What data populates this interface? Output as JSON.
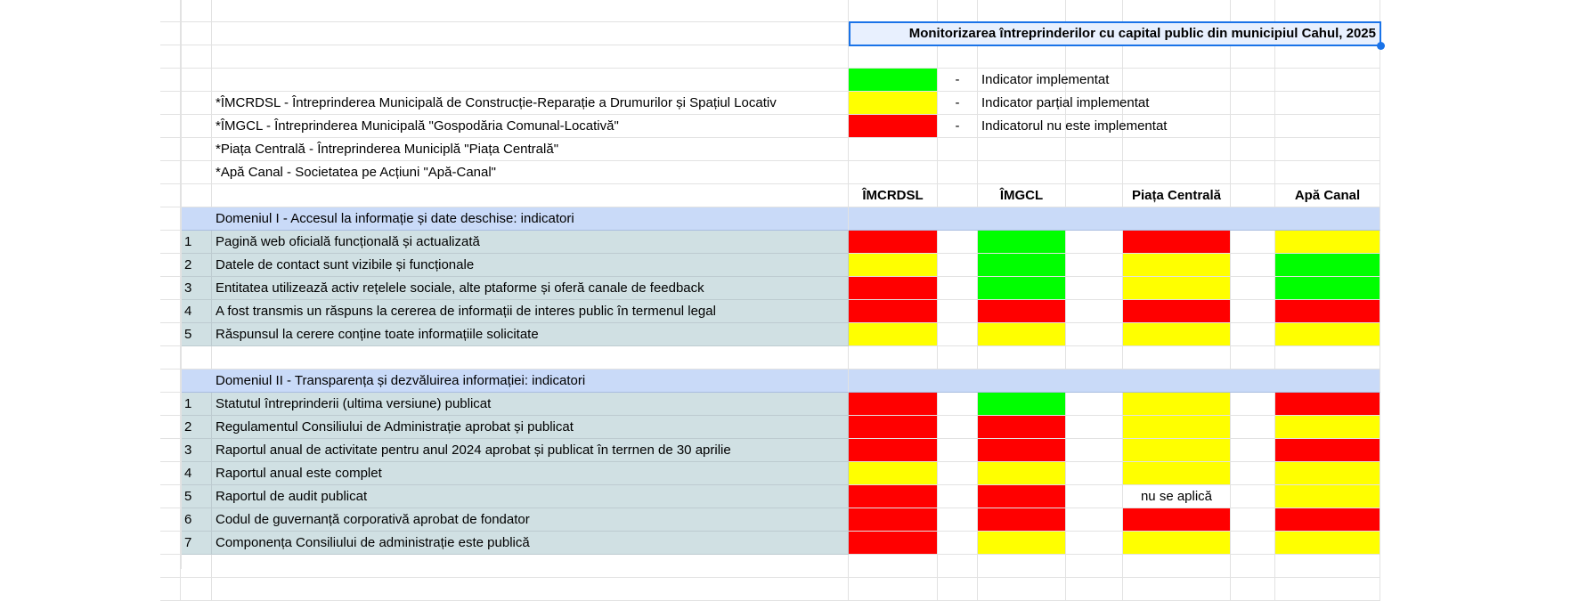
{
  "title": "Monitorizarea întreprinderilor cu capital public din municipiul Cahul, 2025",
  "colors": {
    "green": "#00ff00",
    "yellow": "#ffff00",
    "red": "#ff0000",
    "label_bg": "#d0e0e3",
    "domain_bg": "#c9daf8",
    "selection": "#1a73e8"
  },
  "legend": [
    {
      "status": "green",
      "dash": "-",
      "text": "Indicator implementat"
    },
    {
      "status": "yellow",
      "dash": "-",
      "text": "Indicator parțial implementat"
    },
    {
      "status": "red",
      "dash": "-",
      "text": "Indicatorul nu este implementat"
    }
  ],
  "abbreviations": [
    "*ÎMCRDSL - Întreprinderea Municipală de Construcție-Reparație a Drumurilor și Spațiul Locativ",
    "*ÎMGCL - Întreprinderea Municipală \"Gospodăria Comunal-Locativă\"",
    "*Piața Centrală - Întreprinderea Municiplă \"Piața Centrală\"",
    "*Apă Canal - Societatea pe Acțiuni \"Apă-Canal\""
  ],
  "columns": [
    "ÎMCRDSL",
    "ÎMGCL",
    "Piața Centrală",
    "Apă Canal"
  ],
  "domains": [
    {
      "title": "Domeniul I - Accesul la informație și date deschise: indicatori",
      "rows": [
        {
          "num": "1",
          "label": "Pagină web oficială funcțională și actualizată",
          "status": [
            "red",
            "green",
            "red",
            "yellow"
          ]
        },
        {
          "num": "2",
          "label": "Datele de contact sunt vizibile și funcționale",
          "status": [
            "yellow",
            "green",
            "yellow",
            "green"
          ]
        },
        {
          "num": "3",
          "label": "Entitatea utilizează activ rețelele sociale, alte ptaforme și oferă canale de feedback",
          "status": [
            "red",
            "green",
            "yellow",
            "green"
          ]
        },
        {
          "num": "4",
          "label": "A fost transmis un răspuns la cererea de informații de interes public în termenul legal",
          "status": [
            "red",
            "red",
            "red",
            "red"
          ]
        },
        {
          "num": "5",
          "label": "Răspunsul la cerere conține toate informațiile solicitate",
          "status": [
            "yellow",
            "yellow",
            "yellow",
            "yellow"
          ]
        }
      ]
    },
    {
      "title": "Domeniul II - Transparența și dezvăluirea informației: indicatori",
      "rows": [
        {
          "num": "1",
          "label": "Statutul întreprinderii (ultima versiune) publicat",
          "status": [
            "red",
            "green",
            "yellow",
            "red"
          ]
        },
        {
          "num": "2",
          "label": "Regulamentul Consiliului de Administrație aprobat și publicat",
          "status": [
            "red",
            "red",
            "yellow",
            "yellow"
          ]
        },
        {
          "num": "3",
          "label": "Raportul anual de activitate pentru anul 2024 aprobat și publicat în terrnen de 30 aprilie",
          "status": [
            "red",
            "red",
            "yellow",
            "red"
          ]
        },
        {
          "num": "4",
          "label": "Raportul anual este complet",
          "status": [
            "yellow",
            "yellow",
            "yellow",
            "yellow"
          ]
        },
        {
          "num": "5",
          "label": "Raportul de audit publicat",
          "status": [
            "red",
            "red",
            "nu se aplică",
            "yellow"
          ]
        },
        {
          "num": "6",
          "label": "Codul de guvernanță corporativă aprobat de fondator",
          "status": [
            "red",
            "red",
            "red",
            "red"
          ]
        },
        {
          "num": "7",
          "label": "Componența Consiliului de administrație este publică",
          "status": [
            "red",
            "yellow",
            "yellow",
            "yellow"
          ]
        }
      ]
    }
  ]
}
